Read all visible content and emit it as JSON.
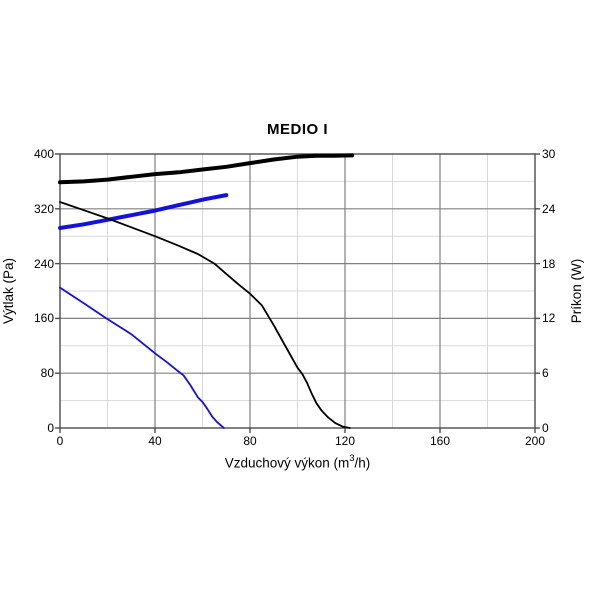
{
  "chart_data": {
    "type": "line",
    "title": "MEDIO I",
    "xlabel_prefix": "Vzduchový výkon (m",
    "xlabel_sup": "3",
    "xlabel_suffix": "/h)",
    "ylabel_left": "Výtlak (Pa)",
    "ylabel_right": "Príkon (W)",
    "x_axis": {
      "min": 0,
      "max": 200,
      "major_step": 40,
      "minor_step": 20,
      "ticks": [
        0,
        40,
        80,
        120,
        160,
        200
      ]
    },
    "y_axis_left": {
      "min": 0,
      "max": 400,
      "major_step": 80,
      "minor_step": 40,
      "ticks": [
        400,
        320,
        240,
        160,
        80,
        0
      ]
    },
    "y_axis_right": {
      "min": 0,
      "max": 30,
      "ticks": [
        30,
        24,
        18,
        12,
        6,
        0
      ]
    },
    "grid": "major-and-minor",
    "legend": "none",
    "colors": {
      "series_black": "#000000",
      "series_blue": "#1212dd",
      "grid_major": "#808080",
      "grid_minor": "#d9d9d9",
      "frame": "#4d4d4d",
      "background": "#ffffff"
    },
    "series": [
      {
        "name": "power-high-speed",
        "axis": "right",
        "unit": "W",
        "color": "#000000",
        "stroke_width": 4,
        "points": [
          [
            0,
            26.9
          ],
          [
            10,
            27.0
          ],
          [
            20,
            27.2
          ],
          [
            30,
            27.5
          ],
          [
            40,
            27.8
          ],
          [
            50,
            28.0
          ],
          [
            60,
            28.3
          ],
          [
            70,
            28.6
          ],
          [
            80,
            29.0
          ],
          [
            90,
            29.4
          ],
          [
            100,
            29.7
          ],
          [
            108,
            29.8
          ],
          [
            115,
            29.8
          ],
          [
            123,
            29.85
          ]
        ]
      },
      {
        "name": "power-low-speed",
        "axis": "right",
        "unit": "W",
        "color": "#1212dd",
        "stroke_width": 4,
        "points": [
          [
            0,
            21.9
          ],
          [
            10,
            22.3
          ],
          [
            20,
            22.8
          ],
          [
            30,
            23.3
          ],
          [
            40,
            23.8
          ],
          [
            50,
            24.4
          ],
          [
            55,
            24.7
          ],
          [
            60,
            25.0
          ],
          [
            64,
            25.2
          ],
          [
            67,
            25.35
          ],
          [
            70,
            25.5
          ]
        ]
      },
      {
        "name": "pressure-low-speed",
        "axis": "left",
        "unit": "Pa",
        "color": "#1212dd",
        "stroke_width": 1.8,
        "points": [
          [
            0,
            205
          ],
          [
            10,
            182
          ],
          [
            20,
            159
          ],
          [
            30,
            137
          ],
          [
            40,
            109
          ],
          [
            45,
            96
          ],
          [
            50,
            82
          ],
          [
            52,
            77
          ],
          [
            55,
            62
          ],
          [
            58,
            45
          ],
          [
            60,
            38
          ],
          [
            62,
            28
          ],
          [
            64,
            17
          ],
          [
            66,
            9
          ],
          [
            68,
            3
          ],
          [
            69,
            0
          ]
        ]
      },
      {
        "name": "pressure-high-speed",
        "axis": "left",
        "unit": "Pa",
        "color": "#000000",
        "stroke_width": 1.8,
        "points": [
          [
            0,
            330
          ],
          [
            10,
            318
          ],
          [
            20,
            306
          ],
          [
            30,
            293
          ],
          [
            40,
            280
          ],
          [
            50,
            266
          ],
          [
            58,
            254
          ],
          [
            65,
            240
          ],
          [
            70,
            225
          ],
          [
            75,
            210
          ],
          [
            80,
            196
          ],
          [
            85,
            179
          ],
          [
            90,
            150
          ],
          [
            95,
            119
          ],
          [
            100,
            88
          ],
          [
            102,
            79
          ],
          [
            104,
            66
          ],
          [
            106,
            50
          ],
          [
            108,
            36
          ],
          [
            110,
            26
          ],
          [
            113,
            15
          ],
          [
            116,
            7
          ],
          [
            119,
            2
          ],
          [
            122,
            0
          ]
        ]
      }
    ]
  }
}
